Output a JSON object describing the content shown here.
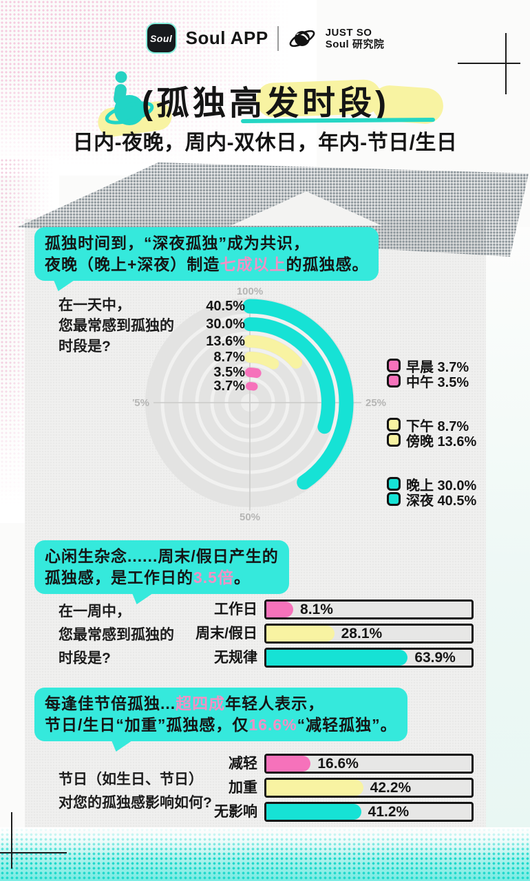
{
  "colors": {
    "cyan": "#16e2d5",
    "yellow": "#f8f3a2",
    "pink": "#f672bb",
    "pink_text": "#f58fc4",
    "bubble_cyan": "#35e9dc",
    "track_gray": "#e3e3e2",
    "panel_gray": "#f0f0ef",
    "axis_gray": "#b5b5b4",
    "ink": "#151515"
  },
  "header": {
    "logo_text": "Soul",
    "app_name": "Soul APP",
    "brand_top": "JUST SO",
    "brand_bottom": "Soul 研究院"
  },
  "title": {
    "main": "(孤独高发时段)",
    "subtitle": "日内-夜晚，周内-双休日，年内-节日/生日"
  },
  "bubbles": {
    "b1": {
      "line1": "孤独时间到，“深夜孤独”成为共识，",
      "line2_pre": "夜晚（晚上+深夜）制造",
      "line2_hl": "七成以上",
      "line2_post": "的孤独感。"
    },
    "b2": {
      "line1": "心闲生杂念......周末/假日产生的",
      "line2_pre": "孤独感，是工作日的",
      "line2_hl": "3.5倍",
      "line2_post": "。"
    },
    "b3": {
      "line1_pre": "每逢佳节倍孤独...",
      "line1_hl": "超四成",
      "line1_post": "年轻人表示，",
      "line2_pre": "节日/生日“加重”孤独感，仅",
      "line2_hl": "16.6%",
      "line2_post": "“减轻孤独”。"
    }
  },
  "questions": {
    "q1": [
      "在一天中，",
      "您最常感到孤独的",
      "时段是?"
    ],
    "q2": [
      "在一周中，",
      "您最常感到孤独的",
      "时段是?"
    ],
    "q3": [
      "节日（如生日、节日）",
      "对您的孤独感影响如何?"
    ]
  },
  "chart_data": [
    {
      "type": "radial-bar",
      "question": "在一天中，您最常感到孤独的时段是?",
      "unit": "%",
      "axis_ticks": {
        "top": "100%",
        "left": "75%",
        "bottom": "50%",
        "right": "25%"
      },
      "axis_range": [
        0,
        100
      ],
      "series": [
        {
          "label": "深夜",
          "value": 40.5,
          "display": "40.5%",
          "color": "cyan"
        },
        {
          "label": "晚上",
          "value": 30.0,
          "display": "30.0%",
          "color": "cyan"
        },
        {
          "label": "傍晚",
          "value": 13.6,
          "display": "13.6%",
          "color": "yellow"
        },
        {
          "label": "下午",
          "value": 8.7,
          "display": "8.7%",
          "color": "yellow"
        },
        {
          "label": "中午",
          "value": 3.5,
          "display": "3.5%",
          "color": "pink"
        },
        {
          "label": "早晨",
          "value": 3.7,
          "display": "3.7%",
          "color": "pink"
        }
      ],
      "legend_groups": [
        [
          {
            "label": "早晨",
            "display": "3.7%",
            "color": "pink"
          },
          {
            "label": "中午",
            "display": "3.5%",
            "color": "pink"
          }
        ],
        [
          {
            "label": "下午",
            "display": "8.7%",
            "color": "yellow"
          },
          {
            "label": "傍晚",
            "display": "13.6%",
            "color": "yellow"
          }
        ],
        [
          {
            "label": "晚上",
            "display": "30.0%",
            "color": "cyan"
          },
          {
            "label": "深夜",
            "display": "40.5%",
            "color": "cyan"
          }
        ]
      ]
    },
    {
      "type": "bar",
      "question": "在一周中，您最常感到孤独的时段是?",
      "categories": [
        "工作日",
        "周末/假日",
        "无规律"
      ],
      "values": [
        8.1,
        28.1,
        63.9
      ],
      "displays": [
        "8.1%",
        "28.1%",
        "63.9%"
      ],
      "bar_colors": [
        "pink",
        "yellow",
        "cyan"
      ],
      "xlim": [
        0,
        100
      ]
    },
    {
      "type": "bar",
      "question": "节日（如生日、节日）对您的孤独感影响如何?",
      "categories": [
        "减轻",
        "加重",
        "无影响"
      ],
      "values": [
        16.6,
        42.2,
        41.2
      ],
      "displays": [
        "16.6%",
        "42.2%",
        "41.2%"
      ],
      "bar_colors": [
        "pink",
        "yellow",
        "cyan"
      ],
      "xlim": [
        0,
        100
      ]
    }
  ]
}
